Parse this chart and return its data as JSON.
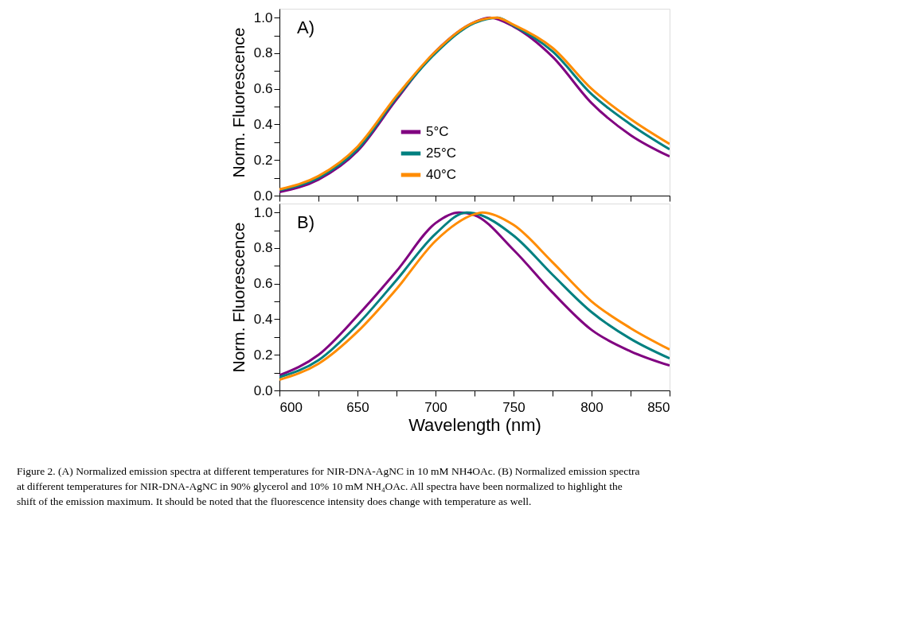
{
  "chart_data": [
    {
      "type": "line",
      "ylabel": "Norm. Fluorescence",
      "annotations": [
        "A)"
      ],
      "legend": "bottom",
      "tick_labels": "y",
      "xlim": [
        600,
        850
      ],
      "ylim": [
        0,
        1.05
      ],
      "xticks": [
        600,
        {
          "value": 625,
          "label": null
        },
        650,
        {
          "value": 675,
          "label": null
        },
        700,
        {
          "value": 725,
          "label": null
        },
        750,
        {
          "value": 775,
          "label": null
        },
        800,
        {
          "value": 825,
          "label": null
        },
        850
      ],
      "yticks": [
        {
          "value": 0,
          "label": "0.0"
        },
        {
          "value": 0.1,
          "label": null
        },
        0.2,
        {
          "value": 0.3,
          "label": null
        },
        0.4,
        {
          "value": 0.5,
          "label": null
        },
        0.6,
        {
          "value": 0.7,
          "label": null
        },
        0.8,
        {
          "value": 0.9,
          "label": null
        },
        {
          "value": 1,
          "label": "1.0"
        }
      ],
      "series": [
        {
          "name": "5°C",
          "color": "#800080",
          "x": [
            600,
            625,
            650,
            675,
            700,
            725,
            735,
            750,
            775,
            800,
            825,
            850
          ],
          "values": [
            0.02,
            0.09,
            0.25,
            0.54,
            0.81,
            0.975,
            1.0,
            0.95,
            0.78,
            0.52,
            0.34,
            0.22
          ]
        },
        {
          "name": "25°C",
          "color": "#008080",
          "x": [
            600,
            625,
            650,
            675,
            700,
            725,
            740,
            750,
            775,
            800,
            825,
            850
          ],
          "values": [
            0.03,
            0.1,
            0.26,
            0.55,
            0.8,
            0.97,
            1.0,
            0.955,
            0.81,
            0.57,
            0.4,
            0.26
          ]
        },
        {
          "name": "40°C",
          "color": "#ff8c00",
          "x": [
            600,
            625,
            650,
            675,
            700,
            725,
            739,
            750,
            775,
            800,
            825,
            850
          ],
          "values": [
            0.035,
            0.11,
            0.275,
            0.56,
            0.81,
            0.975,
            1.0,
            0.96,
            0.83,
            0.6,
            0.43,
            0.29
          ]
        }
      ]
    },
    {
      "type": "line",
      "ylabel": "Norm. Fluorescence",
      "xlabel": "Wavelength (nm)",
      "annotations": [
        "B)",
        "Figure 2. (A) Normalized emission spectra at different temperatures for NIR-DNA-AgNC in 10 mM NH4OAc. (B) Normalized emission spectra at different temperatures for NIR-DNA-AgNC in 90% glycerol and 10% 10 mM NH₄OAc. All spectra have been normalized to highlight the shift of the emission maximum. It should be noted that the fluorescence intensity does change with temperature as well."
      ],
      "legend": "bottom",
      "xlim": [
        600,
        850
      ],
      "ylim": [
        0,
        1.05
      ],
      "xticks": [
        600,
        {
          "value": 625,
          "label": null
        },
        650,
        {
          "value": 675,
          "label": null
        },
        700,
        {
          "value": 725,
          "label": null
        },
        750,
        {
          "value": 775,
          "label": null
        },
        800,
        {
          "value": 825,
          "label": null
        },
        850
      ],
      "yticks": [
        {
          "value": 0,
          "label": "0.0"
        },
        {
          "value": 0.1,
          "label": null
        },
        0.2,
        {
          "value": 0.3,
          "label": null
        },
        0.4,
        {
          "value": 0.5,
          "label": null
        },
        0.6,
        {
          "value": 0.7,
          "label": null
        },
        0.8,
        {
          "value": 0.9,
          "label": null
        },
        {
          "value": 1,
          "label": "1.0"
        }
      ],
      "series": [
        {
          "name": "5°C",
          "color": "#800080",
          "x": [
            600,
            625,
            650,
            675,
            700,
            715,
            725,
            750,
            775,
            800,
            825,
            850
          ],
          "values": [
            0.085,
            0.2,
            0.42,
            0.67,
            0.94,
            1.0,
            0.985,
            0.79,
            0.55,
            0.34,
            0.22,
            0.14
          ]
        },
        {
          "name": "25°C",
          "color": "#008080",
          "x": [
            600,
            625,
            650,
            675,
            700,
            720,
            725,
            750,
            775,
            800,
            825,
            850
          ],
          "values": [
            0.075,
            0.17,
            0.37,
            0.62,
            0.88,
            1.0,
            0.995,
            0.87,
            0.65,
            0.44,
            0.29,
            0.18
          ]
        },
        {
          "name": "40°C",
          "color": "#ff8c00",
          "x": [
            600,
            625,
            650,
            675,
            700,
            725,
            730,
            750,
            775,
            800,
            825,
            850
          ],
          "values": [
            0.06,
            0.15,
            0.33,
            0.57,
            0.84,
            0.99,
            1.0,
            0.93,
            0.72,
            0.5,
            0.35,
            0.23
          ]
        }
      ]
    }
  ]
}
